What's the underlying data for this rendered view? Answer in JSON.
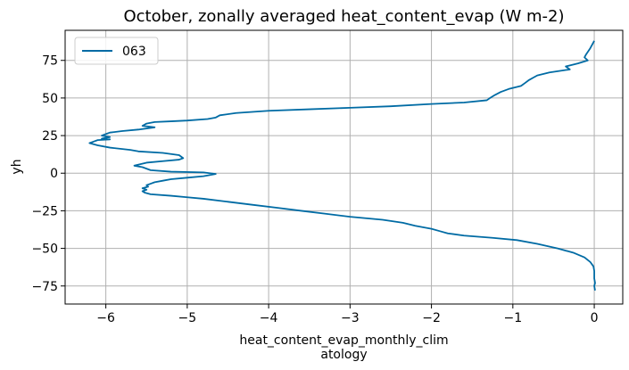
{
  "chart_data": {
    "type": "line",
    "title": "October, zonally averaged heat_content_evap (W m-2)",
    "xlabel_lines": [
      "heat_content_evap_monthly_clim",
      "atology"
    ],
    "ylabel": "yh",
    "xlim": [
      -6.5,
      0.35
    ],
    "ylim": [
      -87,
      95
    ],
    "grid": true,
    "legend_position": "top-left",
    "x_ticks": [
      {
        "value": -6,
        "label": "−6"
      },
      {
        "value": -5,
        "label": "−5"
      },
      {
        "value": -4,
        "label": "−4"
      },
      {
        "value": -3,
        "label": "−3"
      },
      {
        "value": -2,
        "label": "−2"
      },
      {
        "value": -1,
        "label": "−1"
      },
      {
        "value": 0,
        "label": "0"
      }
    ],
    "y_ticks": [
      {
        "value": 75,
        "label": "75"
      },
      {
        "value": 50,
        "label": "50"
      },
      {
        "value": 25,
        "label": "25"
      },
      {
        "value": 0,
        "label": "0"
      },
      {
        "value": -25,
        "label": "−25"
      },
      {
        "value": -50,
        "label": "−50"
      },
      {
        "value": -75,
        "label": "−75"
      }
    ],
    "series": [
      {
        "name": "063",
        "color": "#006ba4",
        "points": [
          [
            0.0,
            88.0
          ],
          [
            -0.02,
            86.0
          ],
          [
            -0.05,
            83.0
          ],
          [
            -0.1,
            79.0
          ],
          [
            -0.12,
            77.0
          ],
          [
            -0.08,
            75.0
          ],
          [
            -0.2,
            73.0
          ],
          [
            -0.35,
            71.0
          ],
          [
            -0.3,
            69.0
          ],
          [
            -0.55,
            67.0
          ],
          [
            -0.7,
            65.0
          ],
          [
            -0.75,
            63.5
          ],
          [
            -0.8,
            62.0
          ],
          [
            -0.85,
            60.0
          ],
          [
            -0.9,
            58.0
          ],
          [
            -1.05,
            56.0
          ],
          [
            -1.15,
            54.0
          ],
          [
            -1.22,
            52.0
          ],
          [
            -1.28,
            50.0
          ],
          [
            -1.32,
            48.5
          ],
          [
            -1.6,
            47.0
          ],
          [
            -2.0,
            46.0
          ],
          [
            -2.5,
            44.5
          ],
          [
            -3.0,
            43.5
          ],
          [
            -3.5,
            42.5
          ],
          [
            -4.0,
            41.5
          ],
          [
            -4.4,
            40.0
          ],
          [
            -4.6,
            38.5
          ],
          [
            -4.65,
            37.0
          ],
          [
            -4.75,
            36.0
          ],
          [
            -5.0,
            35.0
          ],
          [
            -5.2,
            34.5
          ],
          [
            -5.4,
            34.0
          ],
          [
            -5.5,
            33.0
          ],
          [
            -5.55,
            31.5
          ],
          [
            -5.4,
            30.5
          ],
          [
            -5.6,
            29.0
          ],
          [
            -5.8,
            28.0
          ],
          [
            -5.95,
            27.0
          ],
          [
            -6.0,
            26.0
          ],
          [
            -6.05,
            25.0
          ],
          [
            -5.95,
            24.0
          ],
          [
            -6.05,
            23.0
          ],
          [
            -5.95,
            22.5
          ],
          [
            -6.1,
            22.0
          ],
          [
            -6.15,
            21.0
          ],
          [
            -6.2,
            20.0
          ],
          [
            -6.1,
            18.5
          ],
          [
            -5.95,
            17.0
          ],
          [
            -5.7,
            15.5
          ],
          [
            -5.6,
            14.5
          ],
          [
            -5.3,
            13.5
          ],
          [
            -5.1,
            12.0
          ],
          [
            -5.05,
            10.0
          ],
          [
            -5.1,
            9.0
          ],
          [
            -5.3,
            8.0
          ],
          [
            -5.5,
            7.0
          ],
          [
            -5.65,
            5.0
          ],
          [
            -5.55,
            4.0
          ],
          [
            -5.45,
            2.0
          ],
          [
            -5.2,
            1.0
          ],
          [
            -4.8,
            0.5
          ],
          [
            -4.65,
            -0.5
          ],
          [
            -4.8,
            -2.0
          ],
          [
            -5.0,
            -3.0
          ],
          [
            -5.2,
            -4.0
          ],
          [
            -5.3,
            -5.0
          ],
          [
            -5.4,
            -6.0
          ],
          [
            -5.45,
            -7.0
          ],
          [
            -5.5,
            -8.0
          ],
          [
            -5.48,
            -9.0
          ],
          [
            -5.55,
            -10.0
          ],
          [
            -5.5,
            -11.0
          ],
          [
            -5.55,
            -12.0
          ],
          [
            -5.52,
            -13.0
          ],
          [
            -5.45,
            -14.0
          ],
          [
            -5.2,
            -15.0
          ],
          [
            -5.0,
            -16.0
          ],
          [
            -4.8,
            -17.0
          ],
          [
            -4.5,
            -19.0
          ],
          [
            -4.2,
            -21.0
          ],
          [
            -3.9,
            -23.0
          ],
          [
            -3.6,
            -25.0
          ],
          [
            -3.3,
            -27.0
          ],
          [
            -3.0,
            -29.0
          ],
          [
            -2.6,
            -31.0
          ],
          [
            -2.35,
            -33.0
          ],
          [
            -2.2,
            -35.0
          ],
          [
            -2.0,
            -37.0
          ],
          [
            -1.9,
            -38.5
          ],
          [
            -1.8,
            -40.0
          ],
          [
            -1.6,
            -41.5
          ],
          [
            -1.25,
            -43.0
          ],
          [
            -0.95,
            -44.5
          ],
          [
            -0.7,
            -47.0
          ],
          [
            -0.45,
            -50.0
          ],
          [
            -0.25,
            -53.0
          ],
          [
            -0.12,
            -56.0
          ],
          [
            -0.05,
            -59.0
          ],
          [
            -0.01,
            -62.0
          ],
          [
            0.0,
            -65.0
          ],
          [
            0.0,
            -70.0
          ],
          [
            0.01,
            -73.0
          ],
          [
            0.0,
            -75.0
          ],
          [
            0.01,
            -78.0
          ]
        ]
      }
    ]
  }
}
